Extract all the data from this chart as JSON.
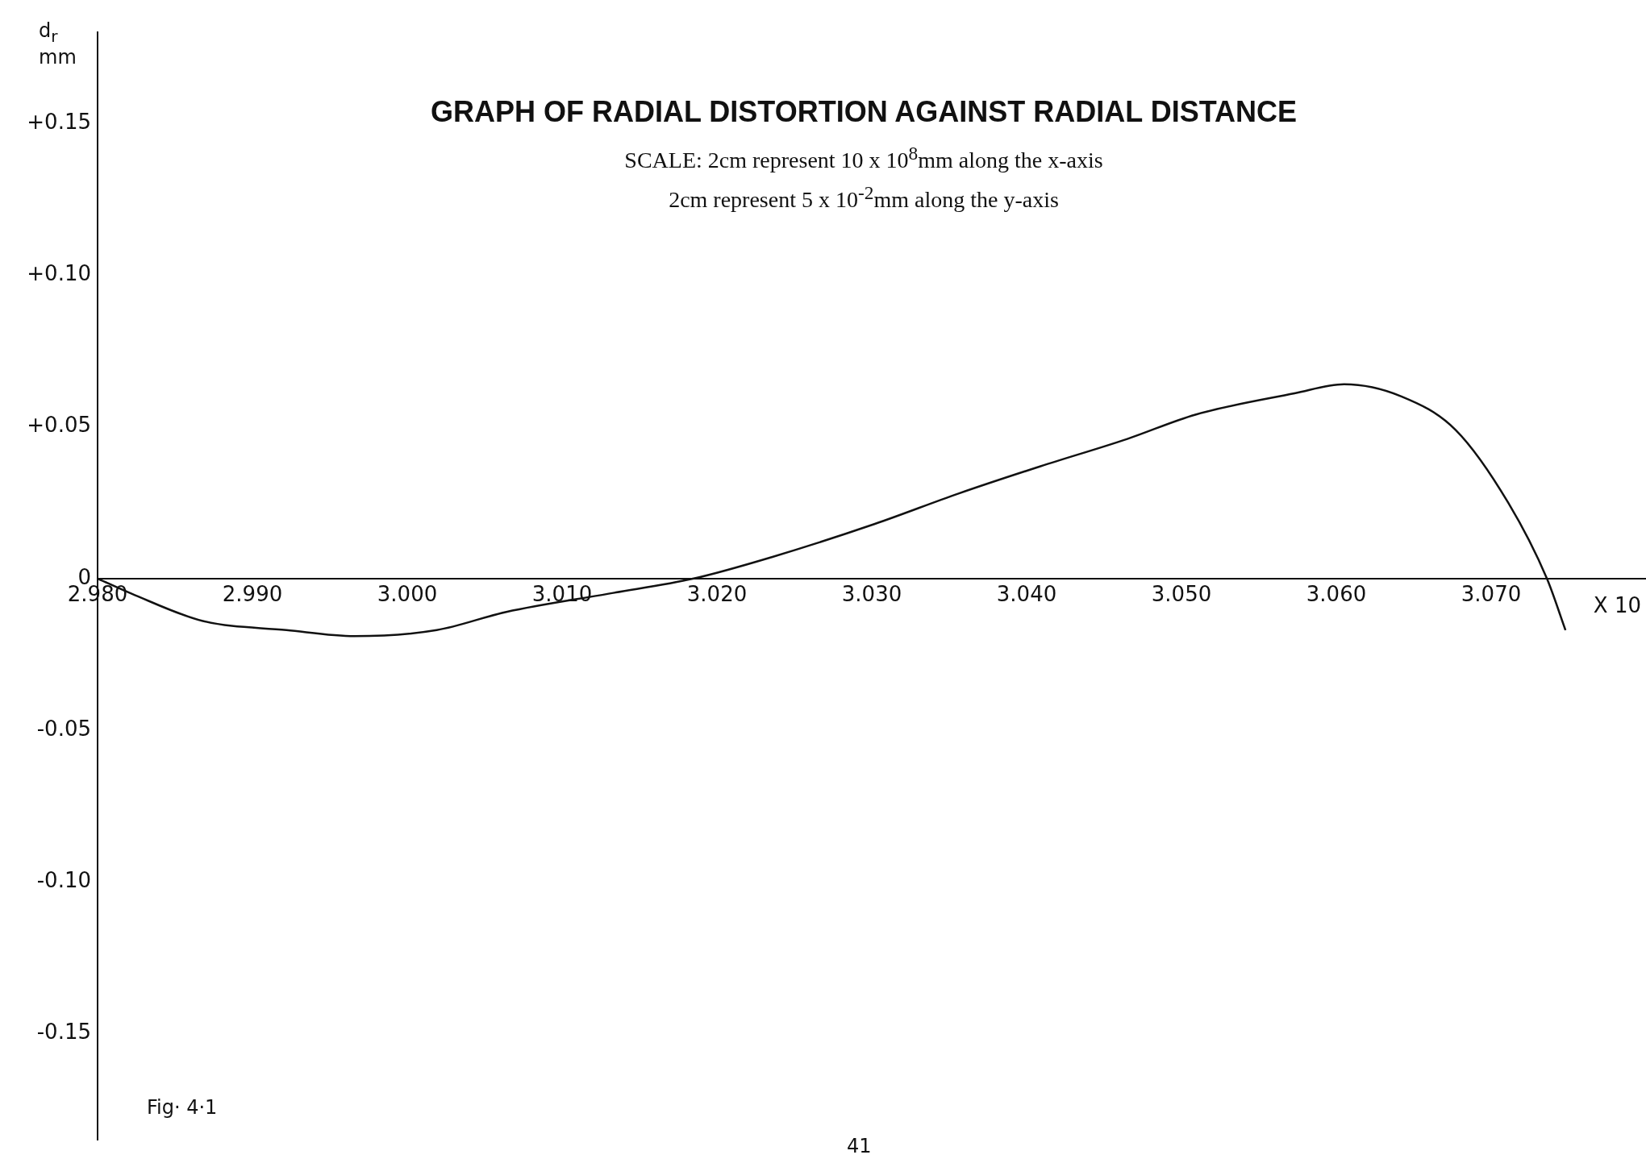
{
  "chart_data": {
    "type": "line",
    "title": "GRAPH OF RADIAL DISTORTION AGAINST RADIAL DISTANCE",
    "subtitle": "SCALE: 2cm represent 10 x 10$^{8}$mm along the x-axis\n2cm represent 5 x 10$^{-2}$mm along the y-axis",
    "xlabel": "X 10",
    "ylabel": "d$_{r}$ mm",
    "annotations": [
      "Fig· 4·1",
      "41"
    ],
    "x": [
      2.98,
      2.9822,
      2.9868,
      2.9922,
      2.9966,
      3.0019,
      3.0064,
      3.013,
      3.0185,
      3.0235,
      3.0302,
      3.0356,
      3.0409,
      3.0465,
      3.0509,
      3.0573,
      3.0605,
      3.0642,
      3.0677,
      3.0711,
      3.0736,
      3.0748
    ],
    "series": [
      {
        "color": "#111111",
        "values": [
          0,
          -0.005,
          -0.014,
          -0.017,
          -0.019,
          -0.017,
          -0.011,
          -0.005,
          0,
          0.007,
          0.018,
          0.028,
          0.037,
          0.046,
          0.054,
          0.061,
          0.064,
          0.06,
          0.049,
          0.025,
          0,
          -0.017
        ]
      }
    ],
    "xlim": [
      2.98,
      3.08
    ],
    "ylim": [
      -0.185,
      0.18
    ],
    "xticks": [
      {
        "value": 2.98,
        "label": "2.980"
      },
      {
        "value": 2.99,
        "label": "2.990"
      },
      {
        "value": 3.0,
        "label": "3.000"
      },
      {
        "value": 3.01,
        "label": "3.010"
      },
      {
        "value": 3.02,
        "label": "3.020"
      },
      {
        "value": 3.03,
        "label": "3.030"
      },
      {
        "value": 3.04,
        "label": "3.040"
      },
      {
        "value": 3.05,
        "label": "3.050"
      },
      {
        "value": 3.06,
        "label": "3.060"
      },
      {
        "value": 3.07,
        "label": "3.070"
      }
    ],
    "yticks": [
      {
        "value": -0.15,
        "label": "-0.15"
      },
      {
        "value": -0.1,
        "label": "-0.10"
      },
      {
        "value": -0.05,
        "label": "-0.05"
      },
      0,
      {
        "value": 0.05,
        "label": "+0.05"
      },
      {
        "value": 0.1,
        "label": "+0.10"
      },
      {
        "value": 0.15,
        "label": "+0.15"
      }
    ],
    "grid": false,
    "legend": false,
    "marker": "none",
    "line_style": "solid"
  }
}
